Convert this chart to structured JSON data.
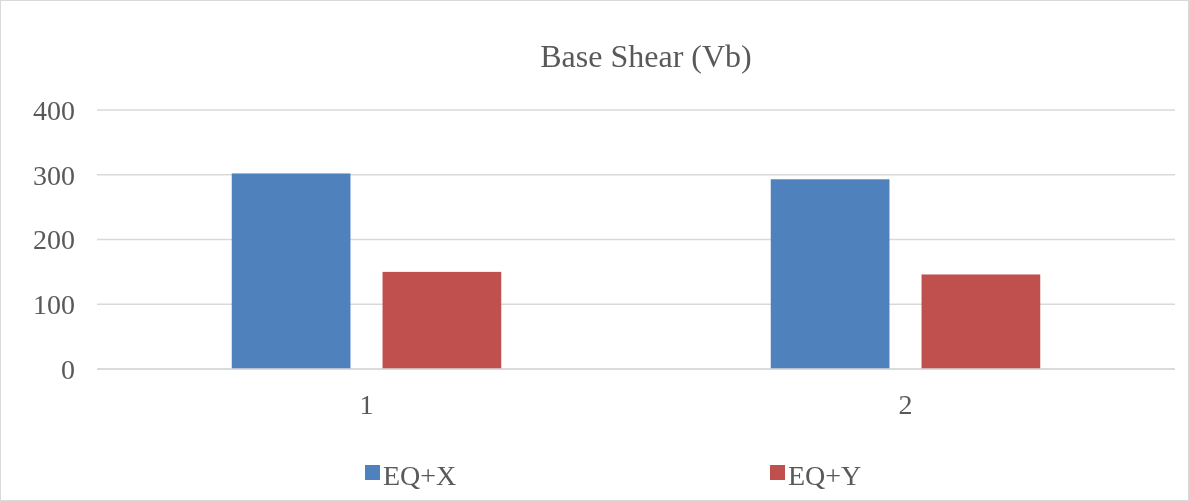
{
  "chart_data": {
    "type": "bar",
    "title": "Base Shear (Vb)",
    "categories": [
      "1",
      "2"
    ],
    "series": [
      {
        "name": "EQ+X",
        "color": "#4f81bd",
        "values": [
          302,
          293
        ]
      },
      {
        "name": "EQ+Y",
        "color": "#c0504d",
        "values": [
          150,
          146
        ]
      }
    ],
    "ylim": [
      0,
      400
    ],
    "yticks": [
      0,
      100,
      200,
      300,
      400
    ],
    "grid": "y",
    "legend": "bottom"
  }
}
